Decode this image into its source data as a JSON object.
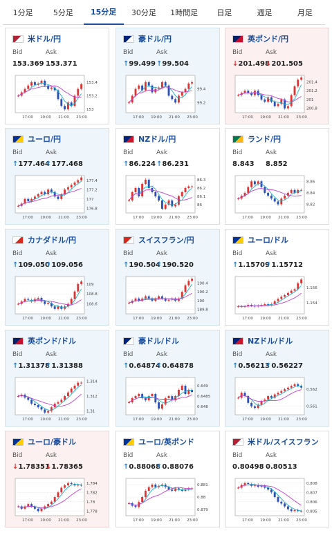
{
  "tabs": [
    "1分足",
    "5分足",
    "15分足",
    "30分足",
    "1時間足",
    "日足",
    "週足",
    "月足"
  ],
  "active_tab": 2,
  "labels": {
    "bid": "Bid",
    "ask": "Ask"
  },
  "x_ticks": [
    "17:00",
    "19:00",
    "21:00",
    "23:00"
  ],
  "cards": [
    {
      "pair": "米ドル/円",
      "flag": "us-jp-flag-icon",
      "state": "flat",
      "bid": "153.369",
      "ask": "153.371",
      "dir": "none",
      "yticks": [
        "153.4",
        "153.2",
        "153"
      ],
      "ylim": [
        152.95,
        153.5
      ],
      "series": [
        153.2,
        153.25,
        153.3,
        153.35,
        153.4,
        153.36,
        153.38,
        153.42,
        153.35,
        153.3,
        153.32,
        153.28,
        153.15,
        153.05,
        153.0,
        153.1,
        153.05,
        153.2,
        153.3,
        153.37
      ]
    },
    {
      "pair": "豪ドル/円",
      "flag": "au-jp-flag-icon",
      "state": "up",
      "bid": "99.499",
      "ask": "99.504",
      "dir": "up",
      "yticks": [
        "99.4",
        "99.2"
      ],
      "ylim": [
        99.05,
        99.6
      ],
      "series": [
        99.2,
        99.3,
        99.4,
        99.45,
        99.38,
        99.5,
        99.45,
        99.35,
        99.4,
        99.42,
        99.5,
        99.45,
        99.3,
        99.25,
        99.2,
        99.3,
        99.35,
        99.4,
        99.48,
        99.5
      ]
    },
    {
      "pair": "英ポンド/円",
      "flag": "gb-jp-flag-icon",
      "state": "down",
      "bid": "201.498",
      "ask": "201.505",
      "dir": "down",
      "yticks": [
        "201.4",
        "201.2",
        "201",
        "200.8"
      ],
      "ylim": [
        200.7,
        201.55
      ],
      "series": [
        201.1,
        201.15,
        201.2,
        201.15,
        201.1,
        201.2,
        201.1,
        201.0,
        200.95,
        201.05,
        200.95,
        200.85,
        200.9,
        201.0,
        200.8,
        200.85,
        201.1,
        201.3,
        201.45,
        201.5
      ]
    },
    {
      "pair": "ユーロ/円",
      "flag": "eu-jp-flag-icon",
      "state": "up",
      "bid": "177.464",
      "ask": "177.468",
      "dir": "up",
      "yticks": [
        "177.4",
        "177.2",
        "177",
        "176.8"
      ],
      "ylim": [
        176.7,
        177.5
      ],
      "series": [
        176.85,
        176.9,
        177.0,
        176.95,
        177.0,
        177.05,
        177.1,
        177.15,
        177.1,
        177.2,
        177.15,
        177.05,
        177.0,
        177.1,
        177.2,
        177.25,
        177.3,
        177.35,
        177.4,
        177.46
      ]
    },
    {
      "pair": "NZドル/円",
      "flag": "nz-jp-flag-icon",
      "state": "flat",
      "bid": "86.224",
      "ask": "86.231",
      "dir": "up",
      "yticks": [
        "86.3",
        "86.2",
        "86.1",
        "86"
      ],
      "ylim": [
        85.9,
        86.35
      ],
      "series": [
        86.05,
        86.15,
        86.2,
        86.1,
        86.25,
        86.3,
        86.2,
        86.15,
        86.1,
        86.05,
        85.95,
        86.0,
        86.05,
        85.98,
        86.0,
        86.1,
        86.15,
        86.2,
        86.22,
        86.22
      ]
    },
    {
      "pair": "ランド/円",
      "flag": "za-jp-flag-icon",
      "state": "flat",
      "bid": "8.843",
      "ask": "8.852",
      "dir": "none",
      "yticks": [
        "8.86",
        "8.84",
        "8.82"
      ],
      "ylim": [
        8.805,
        8.87
      ],
      "series": [
        8.83,
        8.835,
        8.84,
        8.85,
        8.86,
        8.855,
        8.86,
        8.85,
        8.84,
        8.835,
        8.83,
        8.825,
        8.82,
        8.83,
        8.835,
        8.84,
        8.845,
        8.84,
        8.845,
        8.845
      ]
    },
    {
      "pair": "カナダドル/円",
      "flag": "ca-jp-flag-icon",
      "state": "up",
      "bid": "109.050",
      "ask": "109.056",
      "dir": "up",
      "yticks": [
        "109",
        "108.8",
        "108.6"
      ],
      "ylim": [
        108.4,
        109.15
      ],
      "series": [
        108.6,
        108.65,
        108.7,
        108.68,
        108.65,
        108.7,
        108.72,
        108.65,
        108.6,
        108.62,
        108.55,
        108.5,
        108.55,
        108.5,
        108.55,
        108.6,
        108.7,
        108.85,
        109.0,
        109.05
      ]
    },
    {
      "pair": "スイスフラン/円",
      "flag": "ch-jp-flag-icon",
      "state": "up",
      "bid": "190.504",
      "ask": "190.520",
      "dir": "up",
      "yticks": [
        "190.4",
        "190.2",
        "190",
        "189.8"
      ],
      "ylim": [
        189.7,
        190.55
      ],
      "series": [
        189.95,
        190.0,
        190.05,
        190.0,
        190.05,
        190.1,
        190.05,
        190.0,
        190.05,
        190.1,
        190.05,
        190.0,
        190.02,
        190.05,
        190.0,
        190.05,
        190.2,
        190.35,
        190.45,
        190.5
      ]
    },
    {
      "pair": "ユーロ/ドル",
      "flag": "eu-us-flag-icon",
      "state": "flat",
      "bid": "1.15709",
      "ask": "1.15712",
      "dir": "up",
      "yticks": [
        "1.156",
        "1.154"
      ],
      "ylim": [
        1.1525,
        1.1575
      ],
      "series": [
        1.1535,
        1.1535,
        1.1535,
        1.1537,
        1.1536,
        1.1535,
        1.1536,
        1.1537,
        1.1538,
        1.1537,
        1.1538,
        1.1542,
        1.1545,
        1.1548,
        1.155,
        1.1553,
        1.1556,
        1.1558,
        1.1566,
        1.1571
      ]
    },
    {
      "pair": "英ポンド/ドル",
      "flag": "gb-us-flag-icon",
      "state": "up",
      "bid": "1.31378",
      "ask": "1.31388",
      "dir": "up",
      "yticks": [
        "1.314",
        "1.312",
        "1.31"
      ],
      "ylim": [
        1.3095,
        1.3145
      ],
      "series": [
        1.312,
        1.3122,
        1.3118,
        1.3115,
        1.311,
        1.3108,
        1.3105,
        1.3102,
        1.3098,
        1.31,
        1.3105,
        1.311,
        1.3112,
        1.3115,
        1.312,
        1.3125,
        1.313,
        1.3134,
        1.3138,
        1.3138
      ]
    },
    {
      "pair": "豪ドル/ドル",
      "flag": "au-us-flag-icon",
      "state": "up",
      "bid": "0.64874",
      "ask": "0.64878",
      "dir": "up",
      "yticks": [
        "0.649",
        "0.6485",
        "0.648"
      ],
      "ylim": [
        0.6476,
        0.6494
      ],
      "series": [
        0.6482,
        0.6484,
        0.6485,
        0.6486,
        0.6484,
        0.6483,
        0.6485,
        0.6486,
        0.6482,
        0.6479,
        0.6481,
        0.6484,
        0.6485,
        0.6483,
        0.6485,
        0.6488,
        0.649,
        0.6486,
        0.6488,
        0.6487
      ]
    },
    {
      "pair": "NZドル/ドル",
      "flag": "nz-us-flag-icon",
      "state": "up",
      "bid": "0.56213",
      "ask": "0.56227",
      "dir": "up",
      "yticks": [
        "0.562",
        "0.561"
      ],
      "ylim": [
        0.5605,
        0.5627
      ],
      "series": [
        0.5615,
        0.5618,
        0.5616,
        0.5612,
        0.561,
        0.5609,
        0.5611,
        0.5613,
        0.5614,
        0.5616,
        0.5615,
        0.5617,
        0.5618,
        0.5619,
        0.562,
        0.5621,
        0.5622,
        0.5623,
        0.5622,
        0.5621
      ]
    },
    {
      "pair": "ユーロ/豪ドル",
      "flag": "eu-au-flag-icon",
      "state": "down",
      "bid": "1.78351",
      "ask": "1.78365",
      "dir": "down",
      "yticks": [
        "1.784",
        "1.782",
        "1.78",
        "1.778"
      ],
      "ylim": [
        1.777,
        1.785
      ],
      "series": [
        1.779,
        1.7785,
        1.779,
        1.7795,
        1.779,
        1.7785,
        1.778,
        1.7785,
        1.779,
        1.7795,
        1.78,
        1.781,
        1.782,
        1.783,
        1.7835,
        1.784,
        1.7838,
        1.7835,
        1.7836,
        1.7835
      ]
    },
    {
      "pair": "ユーロ/英ポンド",
      "flag": "eu-gb-flag-icon",
      "state": "flat",
      "bid": "0.88068",
      "ask": "0.88076",
      "dir": "up",
      "yticks": [
        "0.881",
        "0.88",
        "0.879"
      ],
      "ylim": [
        0.8785,
        0.8815
      ],
      "series": [
        0.8795,
        0.8793,
        0.8792,
        0.8796,
        0.88,
        0.8805,
        0.8808,
        0.881,
        0.8808,
        0.8809,
        0.881,
        0.8808,
        0.8806,
        0.8805,
        0.8807,
        0.8806,
        0.8805,
        0.8806,
        0.8807,
        0.8807
      ]
    },
    {
      "pair": "米ドル/スイスフラン",
      "flag": "us-ch-flag-icon",
      "state": "flat",
      "bid": "0.80498",
      "ask": "0.80513",
      "dir": "none",
      "yticks": [
        "0.808",
        "0.807",
        "0.806",
        "0.805"
      ],
      "ylim": [
        0.8045,
        0.8085
      ],
      "series": [
        0.8075,
        0.8078,
        0.808,
        0.8079,
        0.8077,
        0.8078,
        0.8076,
        0.8077,
        0.8075,
        0.8073,
        0.807,
        0.8065,
        0.806,
        0.8058,
        0.8055,
        0.8052,
        0.805,
        0.8051,
        0.805,
        0.805
      ]
    }
  ]
}
